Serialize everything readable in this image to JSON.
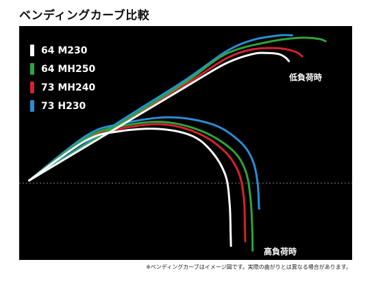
{
  "title": "ベンディングカーブ比較",
  "footnote": "※ベンディングカーブはイメージ図です。実際の曲がりとは異なる場合があります。",
  "chart_data": {
    "type": "line",
    "title": "ベンディングカーブ比較",
    "xlabel": "",
    "ylabel": "",
    "grid": false,
    "legend_position": "top-left",
    "reference_line": "dashed horizontal",
    "annotations": [
      "低負荷時",
      "高負荷時"
    ],
    "series": [
      {
        "name": "64 M230",
        "color": "#ffffff",
        "low_load": [
          [
            0.03,
            0.66
          ],
          [
            0.3,
            0.43
          ],
          [
            0.5,
            0.26
          ],
          [
            0.62,
            0.16
          ],
          [
            0.7,
            0.12
          ],
          [
            0.74,
            0.115
          ],
          [
            0.78,
            0.12
          ],
          [
            0.8,
            0.135
          ],
          [
            0.81,
            0.15
          ]
        ],
        "high_load": [
          [
            0.03,
            0.66
          ],
          [
            0.2,
            0.49
          ],
          [
            0.3,
            0.45
          ],
          [
            0.42,
            0.44
          ],
          [
            0.52,
            0.47
          ],
          [
            0.58,
            0.54
          ],
          [
            0.62,
            0.64
          ],
          [
            0.632,
            0.76
          ],
          [
            0.635,
            0.88
          ],
          [
            0.636,
            0.94
          ]
        ]
      },
      {
        "name": "64 MH250",
        "color": "#2ea53c",
        "low_load": [
          [
            0.03,
            0.66
          ],
          [
            0.3,
            0.42
          ],
          [
            0.5,
            0.24
          ],
          [
            0.62,
            0.12
          ],
          [
            0.74,
            0.07
          ],
          [
            0.84,
            0.05
          ],
          [
            0.9,
            0.055
          ],
          [
            0.92,
            0.065
          ]
        ],
        "high_load": [
          [
            0.03,
            0.66
          ],
          [
            0.2,
            0.48
          ],
          [
            0.3,
            0.43
          ],
          [
            0.43,
            0.41
          ],
          [
            0.55,
            0.45
          ],
          [
            0.64,
            0.53
          ],
          [
            0.68,
            0.62
          ],
          [
            0.695,
            0.74
          ],
          [
            0.7,
            0.87
          ],
          [
            0.701,
            0.96
          ]
        ]
      },
      {
        "name": "73 MH240",
        "color": "#d62230",
        "low_load": [
          [
            0.03,
            0.66
          ],
          [
            0.3,
            0.425
          ],
          [
            0.5,
            0.25
          ],
          [
            0.62,
            0.14
          ],
          [
            0.7,
            0.1
          ],
          [
            0.78,
            0.095
          ],
          [
            0.83,
            0.11
          ],
          [
            0.85,
            0.13
          ]
        ],
        "high_load": [
          [
            0.03,
            0.66
          ],
          [
            0.2,
            0.485
          ],
          [
            0.3,
            0.44
          ],
          [
            0.43,
            0.42
          ],
          [
            0.54,
            0.46
          ],
          [
            0.62,
            0.54
          ],
          [
            0.66,
            0.63
          ],
          [
            0.675,
            0.74
          ],
          [
            0.678,
            0.86
          ],
          [
            0.679,
            0.92
          ]
        ]
      },
      {
        "name": "73 H230",
        "color": "#2a8ed4",
        "low_load": [
          [
            0.03,
            0.66
          ],
          [
            0.3,
            0.41
          ],
          [
            0.5,
            0.23
          ],
          [
            0.62,
            0.11
          ],
          [
            0.7,
            0.06
          ],
          [
            0.78,
            0.04
          ],
          [
            0.82,
            0.04
          ]
        ],
        "high_load": [
          [
            0.03,
            0.66
          ],
          [
            0.2,
            0.47
          ],
          [
            0.3,
            0.42
          ],
          [
            0.45,
            0.39
          ],
          [
            0.58,
            0.42
          ],
          [
            0.66,
            0.49
          ],
          [
            0.7,
            0.57
          ],
          [
            0.716,
            0.67
          ],
          [
            0.72,
            0.77
          ],
          [
            0.721,
            0.78
          ]
        ]
      }
    ]
  }
}
